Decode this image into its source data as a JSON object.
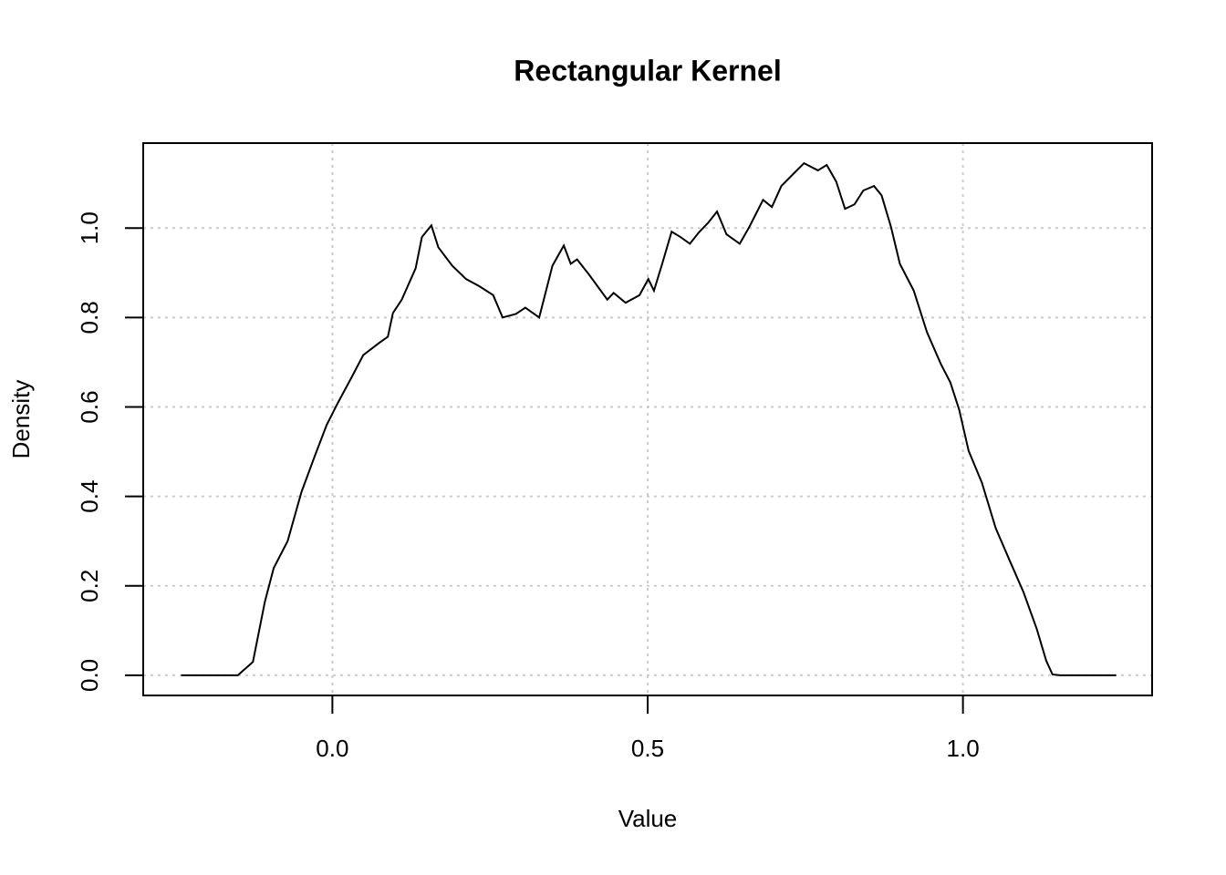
{
  "chart_data": {
    "type": "line",
    "title": "Rectangular Kernel",
    "x_label": "Value",
    "y_label": "Density",
    "x": [
      -0.24,
      -0.15,
      -0.126,
      -0.107,
      -0.093,
      -0.071,
      -0.049,
      -0.028,
      -0.009,
      0.009,
      0.03,
      0.049,
      0.074,
      0.088,
      0.096,
      0.11,
      0.132,
      0.142,
      0.157,
      0.168,
      0.19,
      0.212,
      0.233,
      0.255,
      0.27,
      0.291,
      0.306,
      0.328,
      0.349,
      0.367,
      0.378,
      0.388,
      0.407,
      0.436,
      0.446,
      0.465,
      0.487,
      0.501,
      0.51,
      0.523,
      0.538,
      0.552,
      0.567,
      0.581,
      0.596,
      0.61,
      0.625,
      0.646,
      0.661,
      0.683,
      0.697,
      0.712,
      0.733,
      0.748,
      0.77,
      0.784,
      0.799,
      0.813,
      0.828,
      0.842,
      0.859,
      0.871,
      0.886,
      0.9,
      0.922,
      0.943,
      0.965,
      0.98,
      0.994,
      1.009,
      1.03,
      1.052,
      1.074,
      1.096,
      1.117,
      1.132,
      1.142,
      1.154,
      1.243
    ],
    "series": [
      {
        "name": "density",
        "color": "#000000",
        "values": [
          0,
          0,
          0.03,
          0.165,
          0.24,
          0.3,
          0.41,
          0.49,
          0.56,
          0.61,
          0.665,
          0.716,
          0.743,
          0.757,
          0.81,
          0.84,
          0.91,
          0.98,
          1.006,
          0.957,
          0.916,
          0.886,
          0.87,
          0.85,
          0.8,
          0.808,
          0.822,
          0.8,
          0.916,
          0.961,
          0.92,
          0.93,
          0.896,
          0.84,
          0.855,
          0.833,
          0.85,
          0.886,
          0.86,
          0.92,
          0.992,
          0.98,
          0.965,
          0.99,
          1.012,
          1.037,
          0.986,
          0.965,
          1.002,
          1.063,
          1.047,
          1.094,
          1.124,
          1.145,
          1.129,
          1.141,
          1.104,
          1.043,
          1.053,
          1.084,
          1.094,
          1.073,
          1.002,
          0.92,
          0.86,
          0.767,
          0.696,
          0.655,
          0.594,
          0.502,
          0.431,
          0.329,
          0.257,
          0.186,
          0.104,
          0.033,
          0.002,
          0,
          0
        ]
      }
    ],
    "xlim": [
      -0.3,
      1.3
    ],
    "ylim": [
      -0.045,
      1.19
    ],
    "xticks": [
      {
        "value": 0,
        "label": "0.0"
      },
      {
        "value": 0.5,
        "label": "0.5"
      },
      {
        "value": 1,
        "label": "1.0"
      }
    ],
    "yticks": [
      {
        "value": 0,
        "label": "0.0"
      },
      {
        "value": 0.2,
        "label": "0.2"
      },
      {
        "value": 0.4,
        "label": "0.4"
      },
      {
        "value": 0.6,
        "label": "0.6"
      },
      {
        "value": 0.8,
        "label": "0.8"
      },
      {
        "value": 1,
        "label": "1.0"
      }
    ],
    "grid": true
  }
}
